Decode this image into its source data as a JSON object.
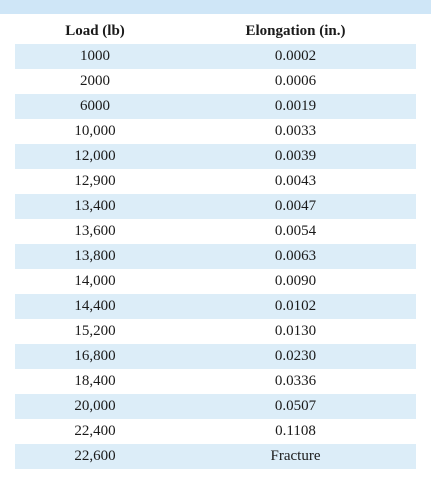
{
  "colors": {
    "top_band": "#cfe6f7",
    "row_shade": "#dcedf8",
    "text": "#1a1a1a"
  },
  "table": {
    "headers": {
      "load": "Load (lb)",
      "elongation": "Elongation (in.)"
    },
    "rows": [
      {
        "load": "1000",
        "elongation": "0.0002"
      },
      {
        "load": "2000",
        "elongation": "0.0006"
      },
      {
        "load": "6000",
        "elongation": "0.0019"
      },
      {
        "load": "10,000",
        "elongation": "0.0033"
      },
      {
        "load": "12,000",
        "elongation": "0.0039"
      },
      {
        "load": "12,900",
        "elongation": "0.0043"
      },
      {
        "load": "13,400",
        "elongation": "0.0047"
      },
      {
        "load": "13,600",
        "elongation": "0.0054"
      },
      {
        "load": "13,800",
        "elongation": "0.0063"
      },
      {
        "load": "14,000",
        "elongation": "0.0090"
      },
      {
        "load": "14,400",
        "elongation": "0.0102"
      },
      {
        "load": "15,200",
        "elongation": "0.0130"
      },
      {
        "load": "16,800",
        "elongation": "0.0230"
      },
      {
        "load": "18,400",
        "elongation": "0.0336"
      },
      {
        "load": "20,000",
        "elongation": "0.0507"
      },
      {
        "load": "22,400",
        "elongation": "0.1108"
      },
      {
        "load": "22,600",
        "elongation": "Fracture"
      }
    ]
  }
}
